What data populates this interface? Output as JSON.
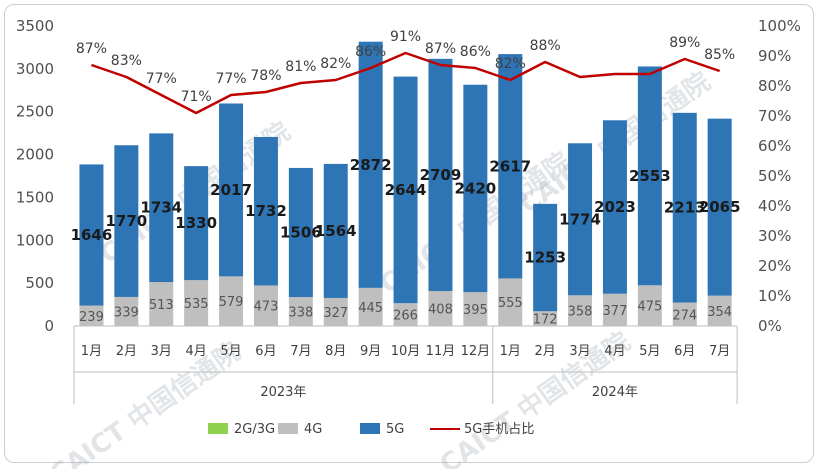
{
  "chart_data": {
    "type": "bar",
    "stacked": true,
    "categories": [
      "1月",
      "2月",
      "3月",
      "4月",
      "5月",
      "6月",
      "7月",
      "8月",
      "9月",
      "10月",
      "11月",
      "12月",
      "1月",
      "2月",
      "3月",
      "4月",
      "5月",
      "6月",
      "7月"
    ],
    "groups": [
      {
        "label": "2023年",
        "span": 12
      },
      {
        "label": "2024年",
        "span": 7
      }
    ],
    "series": [
      {
        "name": "2G/3G",
        "color": "#8fd14f",
        "values": [
          0,
          0,
          0,
          0,
          0,
          0,
          0,
          0,
          0,
          0,
          0,
          0,
          0,
          0,
          0,
          0,
          0,
          0,
          0
        ]
      },
      {
        "name": "4G",
        "color": "#bfbfbf",
        "values": [
          239,
          339,
          513,
          535,
          579,
          473,
          338,
          327,
          445,
          266,
          408,
          395,
          555,
          172,
          358,
          377,
          475,
          274,
          354
        ]
      },
      {
        "name": "5G",
        "color": "#2e75b6",
        "values": [
          1646,
          1770,
          1734,
          1330,
          2017,
          1732,
          1506,
          1564,
          2872,
          2644,
          2709,
          2420,
          2617,
          1253,
          1774,
          2023,
          2553,
          2213,
          2065
        ]
      }
    ],
    "line_series": {
      "name": "5G手机占比",
      "color": "#c00000",
      "axis": "right",
      "values": [
        87,
        83,
        77,
        71,
        77,
        78,
        81,
        82,
        86,
        91,
        87,
        86,
        82,
        88,
        83,
        84,
        84,
        89,
        85
      ],
      "labels": [
        "87%",
        "83%",
        "77%",
        "71%",
        "77%",
        "78%",
        "81%",
        "82%",
        "86%",
        "91%",
        "87%",
        "86%",
        "82%",
        "88%",
        "",
        "",
        "",
        "89%",
        "85%"
      ]
    },
    "y_left": {
      "min": 0,
      "max": 3500,
      "ticks": [
        "0",
        "500",
        "1000",
        "1500",
        "2000",
        "2500",
        "3000",
        "3500"
      ]
    },
    "y_right": {
      "min": 0,
      "max": 100,
      "ticks": [
        "0%",
        "10%",
        "20%",
        "30%",
        "40%",
        "50%",
        "60%",
        "70%",
        "80%",
        "90%",
        "100%"
      ]
    },
    "legend_position": "bottom",
    "grid": false,
    "watermark": "CAICT 中国信通院"
  }
}
